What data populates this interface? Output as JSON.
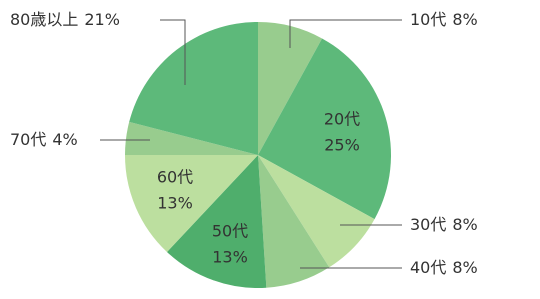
{
  "chart_data": {
    "type": "pie",
    "categories": [
      "10代",
      "20代",
      "30代",
      "40代",
      "50代",
      "60代",
      "70代",
      "80歳以上"
    ],
    "values": [
      8,
      25,
      8,
      8,
      13,
      13,
      4,
      21
    ],
    "value_labels": [
      "8%",
      "25%",
      "8%",
      "8%",
      "13%",
      "13%",
      "4%",
      "21%"
    ],
    "colors": [
      "#98cc8e",
      "#5db97a",
      "#bcdf9f",
      "#98cc8e",
      "#4fae6c",
      "#bcdf9f",
      "#98cc8e",
      "#5db97a"
    ]
  }
}
